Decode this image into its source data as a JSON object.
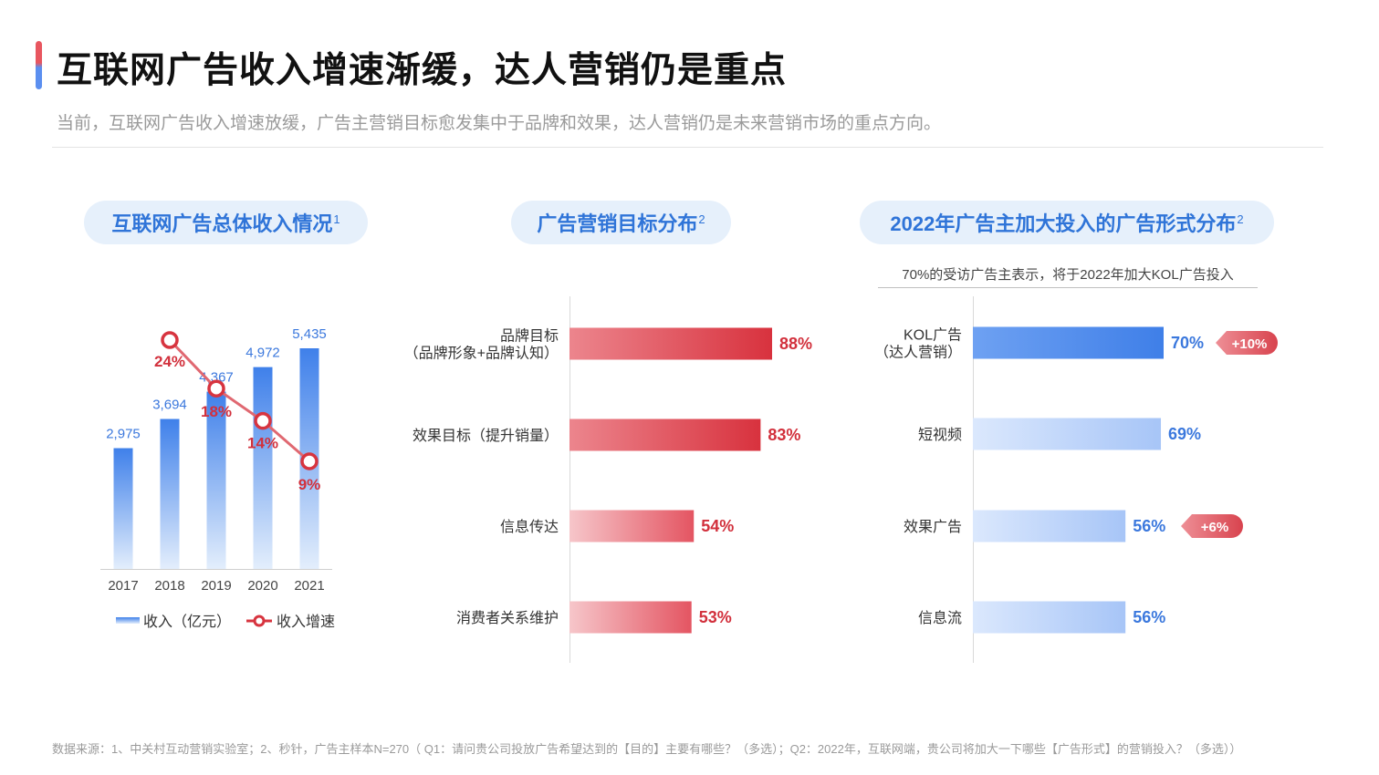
{
  "page": {
    "title": "互联网广告收入增速渐缓，达人营销仍是重点",
    "subtitle": "当前，互联网广告收入增速放缓，广告主营销目标愈发集中于品牌和效果，达人营销仍是未来营销市场的重点方向。",
    "footnote": "数据来源：1、中关村互动营销实验室；2、秒针，广告主样本N=270（ Q1：请问贵公司投放广告希望达到的【目的】主要有哪些？（多选）；Q2：2022年，互联网端，贵公司将加大一下哪些【广告形式】的营销投入？（多选））"
  },
  "panels": [
    {
      "title": "互联网广告总体收入情况",
      "sup": "1"
    },
    {
      "title": "广告营销目标分布",
      "sup": "2"
    },
    {
      "title": "2022年广告主加大投入的广告形式分布",
      "sup": "2"
    }
  ],
  "note": "70%的受访广告主表示，将于2022年加大KOL广告投入",
  "colors": {
    "blue": "#3d7ee6",
    "blue_label": "#3b78dd",
    "red": "#d7343f",
    "red_label": "#d2303c",
    "pill_bg": "#e6f0fb",
    "pill_text": "#2f74d8"
  },
  "chart_data": [
    {
      "type": "bar",
      "combo": "bar+line",
      "categories": [
        "2017",
        "2018",
        "2019",
        "2020",
        "2021"
      ],
      "series": [
        {
          "name": "收入（亿元）",
          "type": "bar",
          "values": [
            2975,
            3694,
            4367,
            4972,
            5435
          ],
          "labels": [
            "2,975",
            "3,694",
            "4,367",
            "4,972",
            "5,435"
          ]
        },
        {
          "name": "收入增速",
          "type": "line",
          "values": [
            24,
            18,
            14,
            9
          ],
          "x": [
            "2018",
            "2019",
            "2020",
            "2021"
          ],
          "labels": [
            "24%",
            "18%",
            "14%",
            "9%"
          ]
        }
      ],
      "legend": [
        "收入（亿元）",
        "收入增速"
      ],
      "legend_position": "bottom"
    },
    {
      "type": "bar",
      "orientation": "horizontal",
      "categories": [
        [
          "品牌目标",
          "（品牌形象+品牌认知）"
        ],
        [
          "效果目标（提升销量）"
        ],
        [
          "信息传达"
        ],
        [
          "消费者关系维护"
        ]
      ],
      "values": [
        88,
        83,
        54,
        53
      ],
      "labels": [
        "88%",
        "83%",
        "54%",
        "53%"
      ],
      "unit": "%"
    },
    {
      "type": "bar",
      "orientation": "horizontal",
      "categories": [
        [
          "KOL广告",
          "（达人营销）"
        ],
        [
          "短视频"
        ],
        [
          "效果广告"
        ],
        [
          "信息流"
        ]
      ],
      "values": [
        70,
        69,
        56,
        56
      ],
      "labels": [
        "70%",
        "69%",
        "56%",
        "56%"
      ],
      "badges": [
        "+10%",
        "",
        "+6%",
        ""
      ],
      "unit": "%"
    }
  ]
}
